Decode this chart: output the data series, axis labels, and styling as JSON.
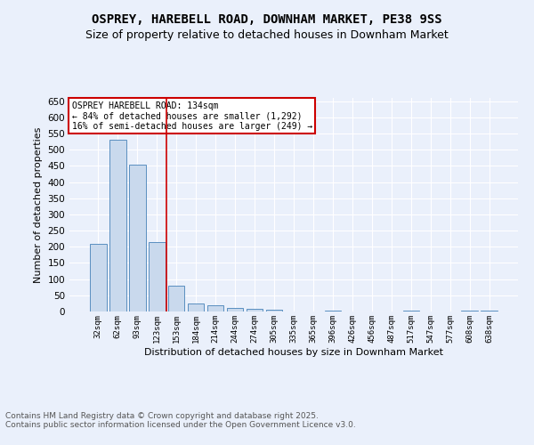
{
  "title": "OSPREY, HAREBELL ROAD, DOWNHAM MARKET, PE38 9SS",
  "subtitle": "Size of property relative to detached houses in Downham Market",
  "xlabel": "Distribution of detached houses by size in Downham Market",
  "ylabel": "Number of detached properties",
  "footnote1": "Contains HM Land Registry data © Crown copyright and database right 2025.",
  "footnote2": "Contains public sector information licensed under the Open Government Licence v3.0.",
  "annotation_title": "OSPREY HAREBELL ROAD: 134sqm",
  "annotation_line1": "← 84% of detached houses are smaller (1,292)",
  "annotation_line2": "16% of semi-detached houses are larger (249) →",
  "bar_color": "#c9d9ed",
  "bar_edge_color": "#5a8fc0",
  "vline_color": "#cc0000",
  "vline_x": 3.5,
  "categories": [
    "32sqm",
    "62sqm",
    "93sqm",
    "123sqm",
    "153sqm",
    "184sqm",
    "214sqm",
    "244sqm",
    "274sqm",
    "305sqm",
    "335sqm",
    "365sqm",
    "396sqm",
    "426sqm",
    "456sqm",
    "487sqm",
    "517sqm",
    "547sqm",
    "577sqm",
    "608sqm",
    "638sqm"
  ],
  "values": [
    210,
    530,
    455,
    215,
    80,
    25,
    20,
    12,
    8,
    5,
    0,
    0,
    3,
    0,
    0,
    0,
    4,
    0,
    0,
    3,
    4
  ],
  "ylim": [
    0,
    660
  ],
  "yticks": [
    0,
    50,
    100,
    150,
    200,
    250,
    300,
    350,
    400,
    450,
    500,
    550,
    600,
    650
  ],
  "background_color": "#eaf0fb",
  "plot_bg_color": "#eaf0fb",
  "grid_color": "#ffffff",
  "title_fontsize": 10,
  "subtitle_fontsize": 9,
  "ylabel_fontsize": 8,
  "xlabel_fontsize": 8,
  "annotation_box_color": "#ffffff",
  "annotation_box_edge": "#cc0000"
}
